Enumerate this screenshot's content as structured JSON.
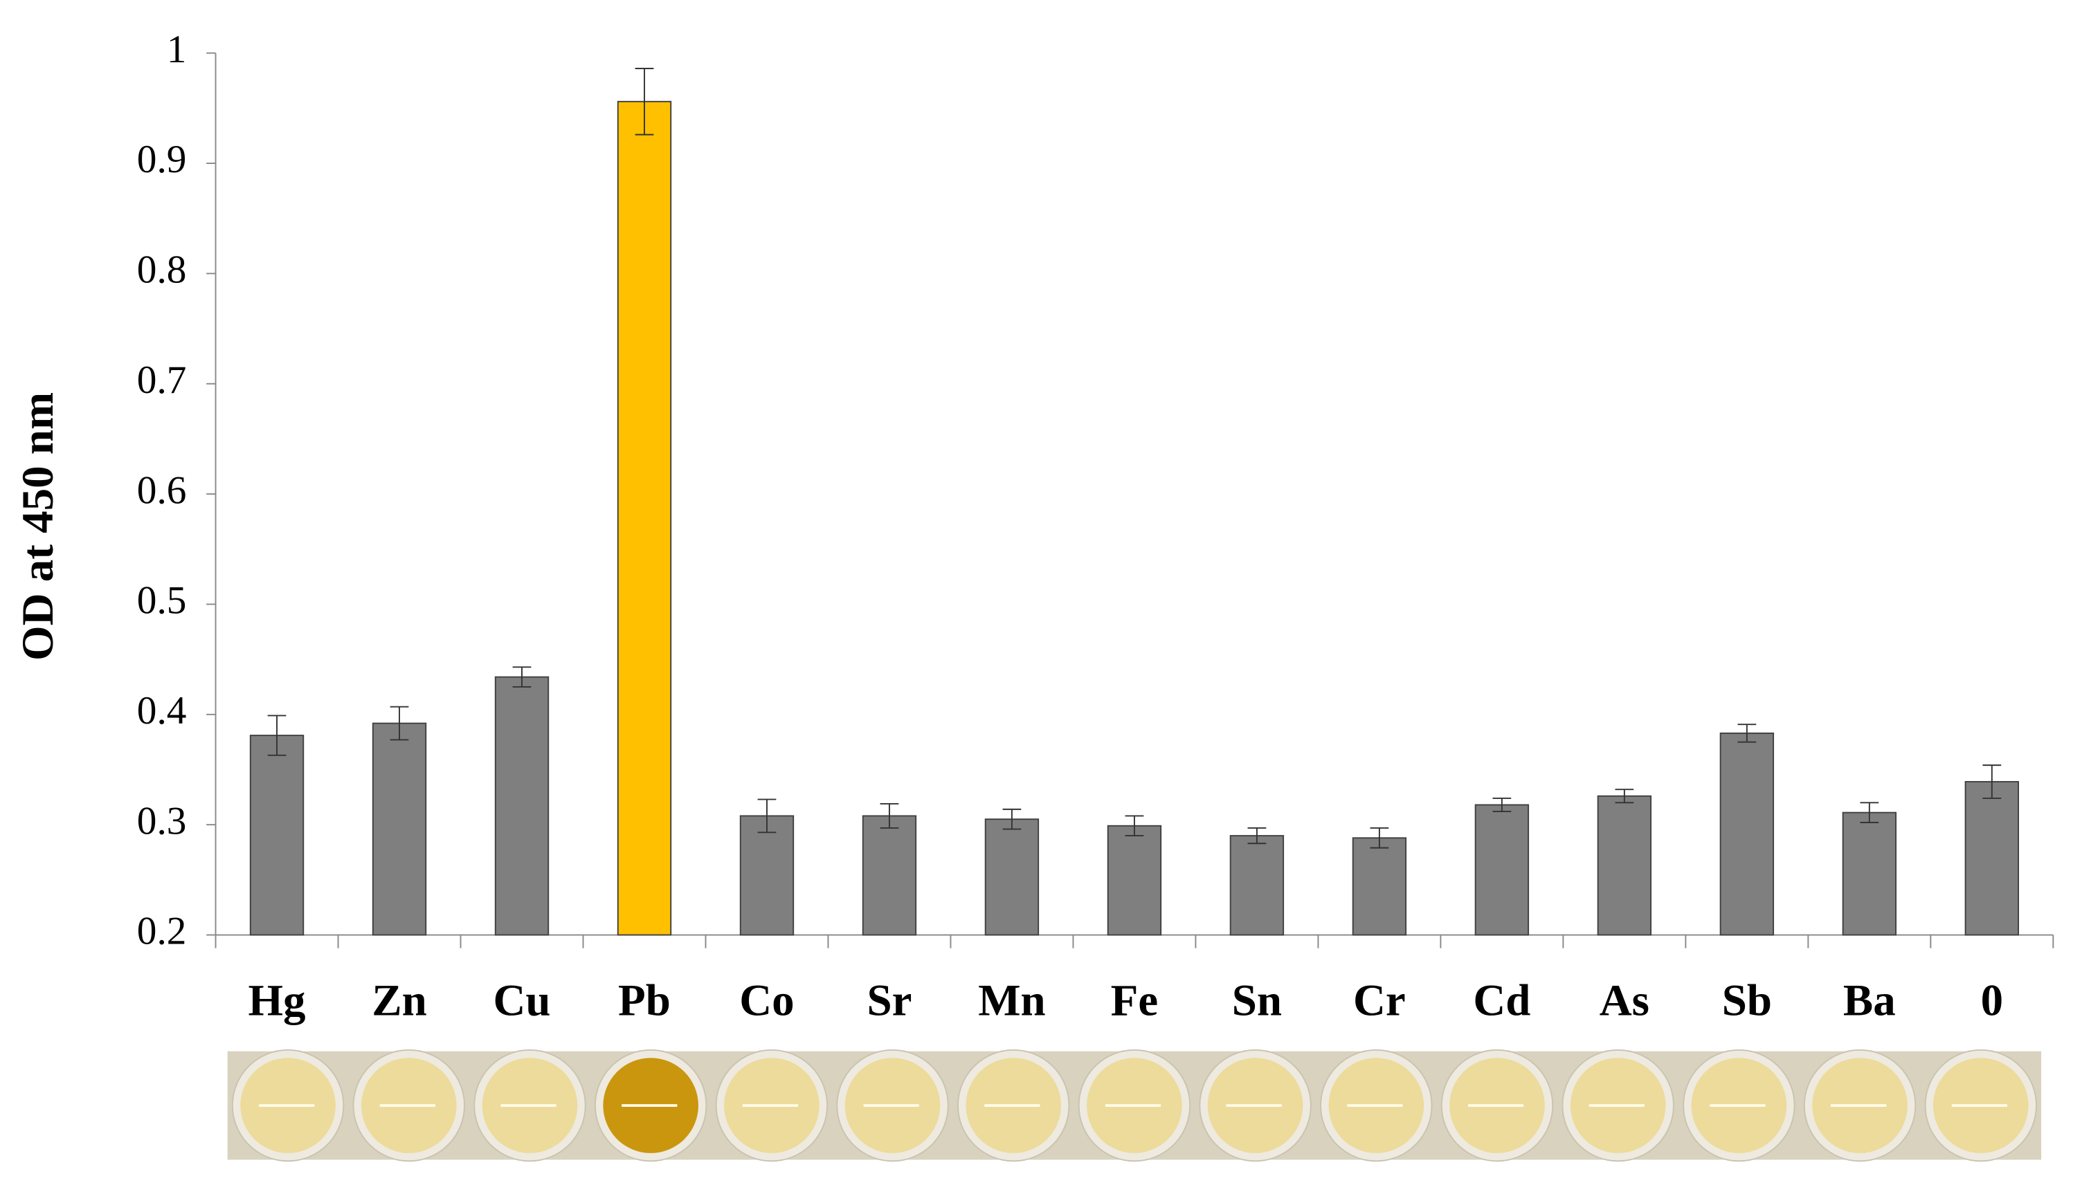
{
  "chart_data": {
    "type": "bar",
    "y_label": "OD at 450 nm",
    "categories": [
      "Hg",
      "Zn",
      "Cu",
      "Pb",
      "Co",
      "Sr",
      "Mn",
      "Fe",
      "Sn",
      "Cr",
      "Cd",
      "As",
      "Sb",
      "Ba",
      "0"
    ],
    "values": [
      0.381,
      0.392,
      0.434,
      0.956,
      0.308,
      0.308,
      0.305,
      0.299,
      0.29,
      0.288,
      0.318,
      0.326,
      0.383,
      0.311,
      0.339
    ],
    "errors": [
      0.018,
      0.015,
      0.009,
      0.03,
      0.015,
      0.011,
      0.009,
      0.009,
      0.007,
      0.009,
      0.006,
      0.006,
      0.008,
      0.009,
      0.015
    ],
    "colors": [
      "#7f7f7f",
      "#7f7f7f",
      "#7f7f7f",
      "#ffc000",
      "#7f7f7f",
      "#7f7f7f",
      "#7f7f7f",
      "#7f7f7f",
      "#7f7f7f",
      "#7f7f7f",
      "#7f7f7f",
      "#7f7f7f",
      "#7f7f7f",
      "#7f7f7f",
      "#7f7f7f"
    ],
    "ylim": [
      0.2,
      1
    ],
    "yticks": [
      0.2,
      0.3,
      0.4,
      0.5,
      0.6,
      0.7,
      0.8,
      0.9,
      1
    ],
    "grid": false
  }
}
